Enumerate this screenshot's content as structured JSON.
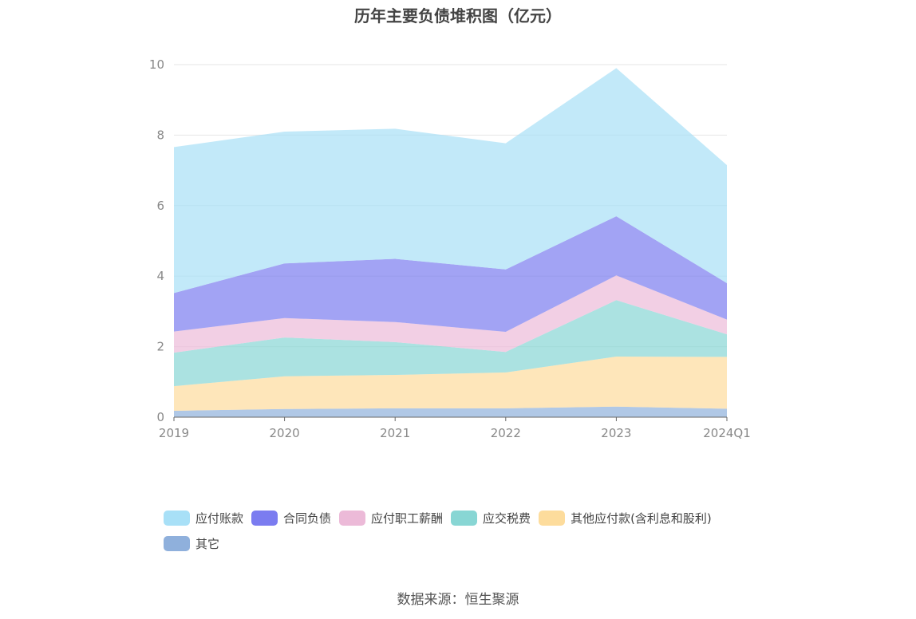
{
  "source_text": "数据来源：恒生聚源",
  "colors": {
    "应付账款": "#a8e0f7",
    "合同负债": "#7b7cf0",
    "应付职工薪酬": "#ecbad8",
    "应交税费": "#88d6d4",
    "其他应付款(含利息和股利)": "#fddc9c",
    "其它": "#8fb0dc"
  },
  "chart_data": {
    "type": "area",
    "stacked": true,
    "title": "历年主要负债堆积图（亿元）",
    "xlabel": "",
    "ylabel": "",
    "categories": [
      "2019",
      "2020",
      "2021",
      "2022",
      "2023",
      "2024Q1"
    ],
    "ylim": [
      0,
      10
    ],
    "yticks": [
      0,
      2,
      4,
      6,
      8,
      10
    ],
    "grid": true,
    "legend_position": "bottom",
    "series": [
      {
        "name": "其它",
        "values": [
          0.18,
          0.23,
          0.25,
          0.25,
          0.3,
          0.24
        ]
      },
      {
        "name": "其他应付款(含利息和股利)",
        "values": [
          0.7,
          0.93,
          0.95,
          1.02,
          1.42,
          1.47
        ]
      },
      {
        "name": "应交税费",
        "values": [
          0.95,
          1.1,
          0.93,
          0.58,
          1.6,
          0.64
        ]
      },
      {
        "name": "应付职工薪酬",
        "values": [
          0.6,
          0.55,
          0.57,
          0.57,
          0.7,
          0.42
        ]
      },
      {
        "name": "合同负债",
        "values": [
          1.09,
          1.55,
          1.79,
          1.77,
          1.68,
          1.03
        ]
      },
      {
        "name": "应付账款",
        "values": [
          4.14,
          3.74,
          3.69,
          3.58,
          4.2,
          3.35
        ]
      }
    ],
    "legend_order": [
      "应付账款",
      "合同负债",
      "应付职工薪酬",
      "应交税费",
      "其他应付款(含利息和股利)",
      "其它"
    ]
  }
}
